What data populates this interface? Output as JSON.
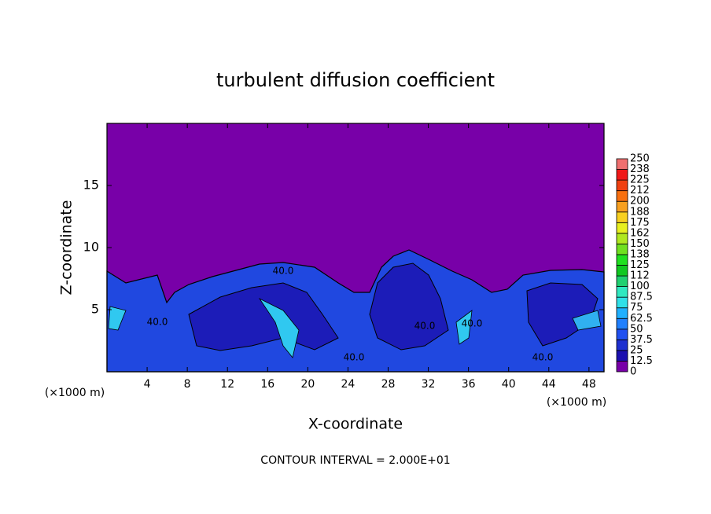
{
  "chart_data": {
    "type": "contour",
    "title": "turbulent diffusion coefficient",
    "x_label": "X-coordinate",
    "y_label": "Z-coordinate",
    "x_unit": "(×1000 m)",
    "y_unit": "(×1000 m)",
    "footer": "CONTOUR INTERVAL = 2.000E+01",
    "contour_labels": [
      "40.0",
      "40.0",
      "40.0",
      "40.0",
      "40.0",
      "40.0"
    ],
    "xlim": [
      0,
      49.5
    ],
    "ylim": [
      0,
      20
    ],
    "xticks": [
      4,
      8,
      12,
      16,
      20,
      24,
      28,
      32,
      36,
      40,
      44,
      48
    ],
    "yticks": [
      5,
      10,
      15
    ],
    "colorbar": {
      "levels": [
        0,
        12.5,
        25,
        37.5,
        50,
        62.5,
        75,
        87.5,
        100,
        {
          "value": 112.5,
          "label": "112"
        },
        125,
        {
          "value": 137.5,
          "label": "138"
        },
        150,
        {
          "value": 162.5,
          "label": "162"
        },
        175,
        {
          "value": 187.5,
          "label": "188"
        },
        200,
        {
          "value": 212.5,
          "label": "212"
        },
        225,
        {
          "value": 237.5,
          "label": "238"
        },
        250
      ],
      "colors": [
        "#7800a8",
        "#1c10b0",
        "#1e30d0",
        "#2050f0",
        "#2080ff",
        "#20b0ff",
        "#30e0e8",
        "#30e8c0",
        "#20d070",
        "#10c820",
        "#20e020",
        "#70e020",
        "#b0e820",
        "#e8f020",
        "#f8d020",
        "#f8a020",
        "#f87010",
        "#f04010",
        "#f01818",
        "#f07070"
      ]
    }
  }
}
